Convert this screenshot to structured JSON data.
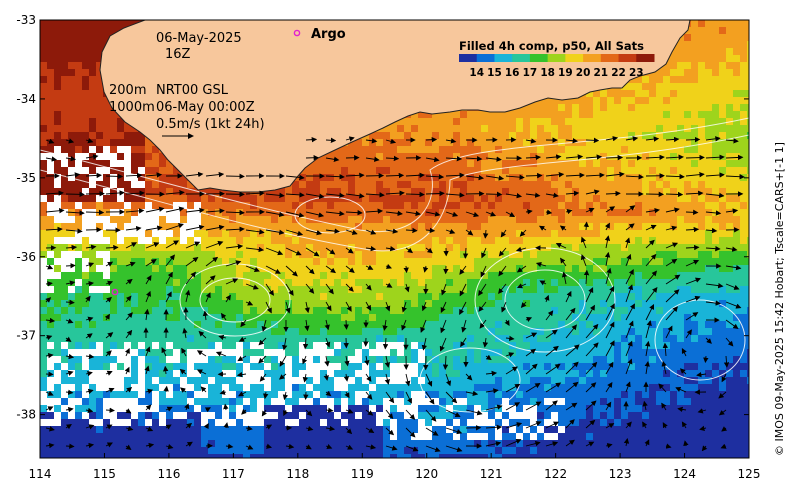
{
  "map": {
    "x_ticks": [
      "114",
      "115",
      "116",
      "117",
      "118",
      "119",
      "120",
      "121",
      "122",
      "123",
      "124",
      "125"
    ],
    "y_ticks": [
      "-33",
      "-34",
      "-35",
      "-36",
      "-37",
      "-38"
    ],
    "x_range": [
      114,
      125
    ],
    "y_range": [
      -38.55,
      -33.0
    ],
    "colors": {
      "land": "#f7c79c",
      "coast": "#222222"
    }
  },
  "annotations": {
    "date": "06-May-2025",
    "hour": "16Z",
    "depth_200": "200m",
    "depth_1000": "1000m",
    "product": "NRT00 GSL",
    "product_time": "06-May 00:00Z",
    "vector_scale": "0.5m/s (1kt 24h)",
    "argo_label": "Argo"
  },
  "legend": {
    "title": "Filled 4h comp, p50, All Sats",
    "ticks": [
      "14",
      "15",
      "16",
      "17",
      "18",
      "19",
      "20",
      "21",
      "22",
      "23"
    ],
    "colors": [
      "#1e2fa0",
      "#0b6fd6",
      "#19b4d8",
      "#27c69b",
      "#35c22c",
      "#9ed41c",
      "#f0d21a",
      "#f3a020",
      "#e36818",
      "#c43b12",
      "#8d1a0a"
    ]
  },
  "credit": "© IMOS 09-May-2025 15:42 Hobart; Tscale=CARS+[-1 1]"
}
